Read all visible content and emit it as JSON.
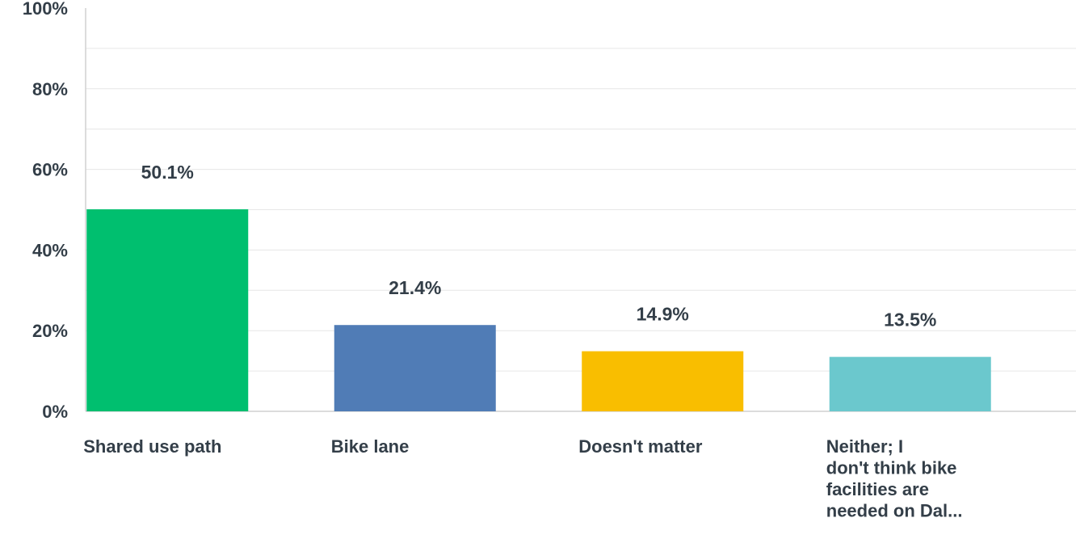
{
  "chart_data": {
    "type": "bar",
    "categories": [
      "Shared use path",
      "Bike lane",
      "Doesn't matter",
      "Neither; I don't think bike facilities are needed on Dal..."
    ],
    "category_lines": [
      [
        "Shared use path"
      ],
      [
        "Bike lane"
      ],
      [
        "Doesn't matter"
      ],
      [
        "Neither; I",
        "don't think bike",
        "facilities are",
        "needed on Dal..."
      ]
    ],
    "values": [
      50.1,
      21.4,
      14.9,
      13.5
    ],
    "data_labels": [
      "50.1%",
      "21.4%",
      "14.9%",
      "13.5%"
    ],
    "colors": [
      "#00bf6f",
      "#507cb6",
      "#f9be00",
      "#6bc8cd"
    ],
    "ylim": [
      0,
      100
    ],
    "yticks": [
      0,
      20,
      40,
      60,
      80,
      100
    ],
    "ytick_labels": [
      "0%",
      "20%",
      "40%",
      "60%",
      "80%",
      "100%"
    ],
    "grid": true,
    "title": "",
    "xlabel": "",
    "ylabel": ""
  }
}
